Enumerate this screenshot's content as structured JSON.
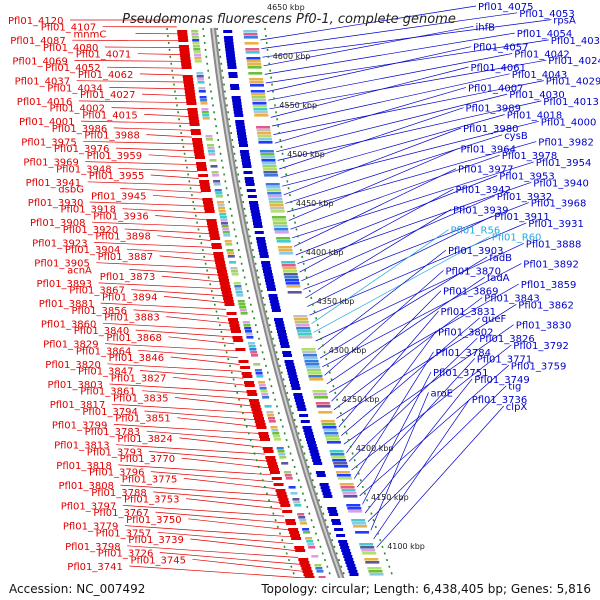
{
  "title": "Pseudomonas fluorescens Pf0-1, complete genome",
  "footer": {
    "accession": "Accession: NC_007492",
    "topology": "Topology: circular; Length: 6,438,405 bp; Genes: 5,816"
  },
  "ticks": [
    "4650 kbp",
    "4600 kbp",
    "4550 kbp",
    "4500 kbp",
    "4450 kbp",
    "4400 kbp",
    "4350 kbp",
    "4300 kbp",
    "4250 kbp",
    "4200 kbp",
    "4150 kbp",
    "4100 kbp"
  ],
  "colors": {
    "forward": "#e00000",
    "reverse": "#0000cc",
    "rna": "#22aadd",
    "backbone": "#8a8a8a"
  },
  "left_labels": [
    "Pfl01_4120",
    "Pfl01_4107",
    "mnmC",
    "Pfl01_4087",
    "Pfl01_4080",
    "Pfl01_4071",
    "Pfl01_4069",
    "Pfl01_4052",
    "Pfl01_4062",
    "Pfl01_4037",
    "Pfl01_4034",
    "Pfl01_4027",
    "Pfl01_4016",
    "Pfl01_4002",
    "Pfl01_4015",
    "Pfl01_4001",
    "Pfl01_3986",
    "Pfl01_3988",
    "Pfl01_3975",
    "Pfl01_3976",
    "Pfl01_3959",
    "Pfl01_3969",
    "Pfl01_3948",
    "Pfl01_3955",
    "Pfl01_3941",
    "dsbG",
    "Pfl01_3945",
    "Pfl01_3930",
    "Pfl01_3918",
    "Pfl01_3936",
    "Pfl01_3908",
    "Pfl01_3920",
    "Pfl01_3898",
    "Pfl01_3923",
    "Pfl01_3904",
    "Pfl01_3887",
    "Pfl01_3905",
    "acnA",
    "Pfl01_3873",
    "Pfl01_3893",
    "Pfl01_3867",
    "Pfl01_3894",
    "Pfl01_3881",
    "Pfl01_3856",
    "Pfl01_3883",
    "Pfl01_3860",
    "Pfl01_3840",
    "Pfl01_3868",
    "Pfl01_3829",
    "Pfl01_3864",
    "Pfl01_3846",
    "Pfl01_3820",
    "Pfl01_3847",
    "Pfl01_3827",
    "Pfl01_3803",
    "Pfl01_3861",
    "Pfl01_3835",
    "Pfl01_3817",
    "Pfl01_3794",
    "Pfl01_3851",
    "Pfl01_3799",
    "Pfl01_3783",
    "Pfl01_3824",
    "Pfl01_3813",
    "Pfl01_3793",
    "Pfl01_3770",
    "Pfl01_3818",
    "Pfl01_3796",
    "Pfl01_3775",
    "Pfl01_3808",
    "Pfl01_3788",
    "Pfl01_3753",
    "Pfl01_3797",
    "Pfl01_3767",
    "Pfl01_3750",
    "Pfl01_3779",
    "Pfl01_3757",
    "Pfl01_3739",
    "Pfl01_3798",
    "Pfl01_3726",
    "Pfl01_3745",
    "Pfl01_3741"
  ],
  "right_labels": [
    {
      "t": "Pfl01_4075",
      "c": "blue"
    },
    {
      "t": "Pfl01_4053",
      "c": "blue"
    },
    {
      "t": "rpsA",
      "c": "blue"
    },
    {
      "t": "ihfB",
      "c": "blue"
    },
    {
      "t": "Pfl01_4054",
      "c": "blue"
    },
    {
      "t": "Pfl01_4036",
      "c": "blue"
    },
    {
      "t": "Pfl01_4057",
      "c": "blue"
    },
    {
      "t": "Pfl01_4042",
      "c": "blue"
    },
    {
      "t": "Pfl01_4024",
      "c": "blue"
    },
    {
      "t": "Pfl01_4061",
      "c": "blue"
    },
    {
      "t": "Pfl01_4043",
      "c": "blue"
    },
    {
      "t": "Pfl01_4029",
      "c": "blue"
    },
    {
      "t": "Pfl01_4007",
      "c": "blue"
    },
    {
      "t": "Pfl01_4030",
      "c": "blue"
    },
    {
      "t": "Pfl01_4013",
      "c": "blue"
    },
    {
      "t": "Pfl01_3989",
      "c": "blue"
    },
    {
      "t": "Pfl01_4018",
      "c": "blue"
    },
    {
      "t": "Pfl01_4000",
      "c": "blue"
    },
    {
      "t": "Pfl01_3980",
      "c": "blue"
    },
    {
      "t": "cysB",
      "c": "blue"
    },
    {
      "t": "Pfl01_3982",
      "c": "blue"
    },
    {
      "t": "Pfl01_3964",
      "c": "blue"
    },
    {
      "t": "Pfl01_3978",
      "c": "blue"
    },
    {
      "t": "Pfl01_3954",
      "c": "blue"
    },
    {
      "t": "Pfl01_3977",
      "c": "blue"
    },
    {
      "t": "Pfl01_3953",
      "c": "blue"
    },
    {
      "t": "Pfl01_3940",
      "c": "blue"
    },
    {
      "t": "Pfl01_3942",
      "c": "blue"
    },
    {
      "t": "Pfl01_3932",
      "c": "blue"
    },
    {
      "t": "Pfl01_3968",
      "c": "blue"
    },
    {
      "t": "Pfl01_3939",
      "c": "blue"
    },
    {
      "t": "Pfl01_3911",
      "c": "blue"
    },
    {
      "t": "Pfl01_3931",
      "c": "blue"
    },
    {
      "t": "Pfl01_R56",
      "c": "cyan"
    },
    {
      "t": "Pfl01_R60",
      "c": "cyan"
    },
    {
      "t": "Pfl01_3888",
      "c": "blue"
    },
    {
      "t": "Pfl01_3903",
      "c": "blue"
    },
    {
      "t": "fadB",
      "c": "blue"
    },
    {
      "t": "Pfl01_3892",
      "c": "blue"
    },
    {
      "t": "Pfl01_3870",
      "c": "blue"
    },
    {
      "t": "fadA",
      "c": "blue"
    },
    {
      "t": "Pfl01_3859",
      "c": "blue"
    },
    {
      "t": "Pfl01_3869",
      "c": "blue"
    },
    {
      "t": "Pfl01_3843",
      "c": "blue"
    },
    {
      "t": "Pfl01_3862",
      "c": "blue"
    },
    {
      "t": "Pfl01_3831",
      "c": "blue"
    },
    {
      "t": "queF",
      "c": "blue"
    },
    {
      "t": "Pfl01_3830",
      "c": "blue"
    },
    {
      "t": "Pfl01_3802",
      "c": "blue"
    },
    {
      "t": "Pfl01_3826",
      "c": "blue"
    },
    {
      "t": "Pfl01_3792",
      "c": "blue"
    },
    {
      "t": "Pfl01_3784",
      "c": "blue"
    },
    {
      "t": "Pfl01_3771",
      "c": "blue"
    },
    {
      "t": "Pfl01_3759",
      "c": "blue"
    },
    {
      "t": "Pfl01_3751",
      "c": "blue"
    },
    {
      "t": "Pfl01_3749",
      "c": "blue"
    },
    {
      "t": "tig",
      "c": "blue"
    },
    {
      "t": "aroE",
      "c": "blue"
    },
    {
      "t": "Pfl01_3736",
      "c": "blue"
    },
    {
      "t": "clpX",
      "c": "blue"
    }
  ]
}
